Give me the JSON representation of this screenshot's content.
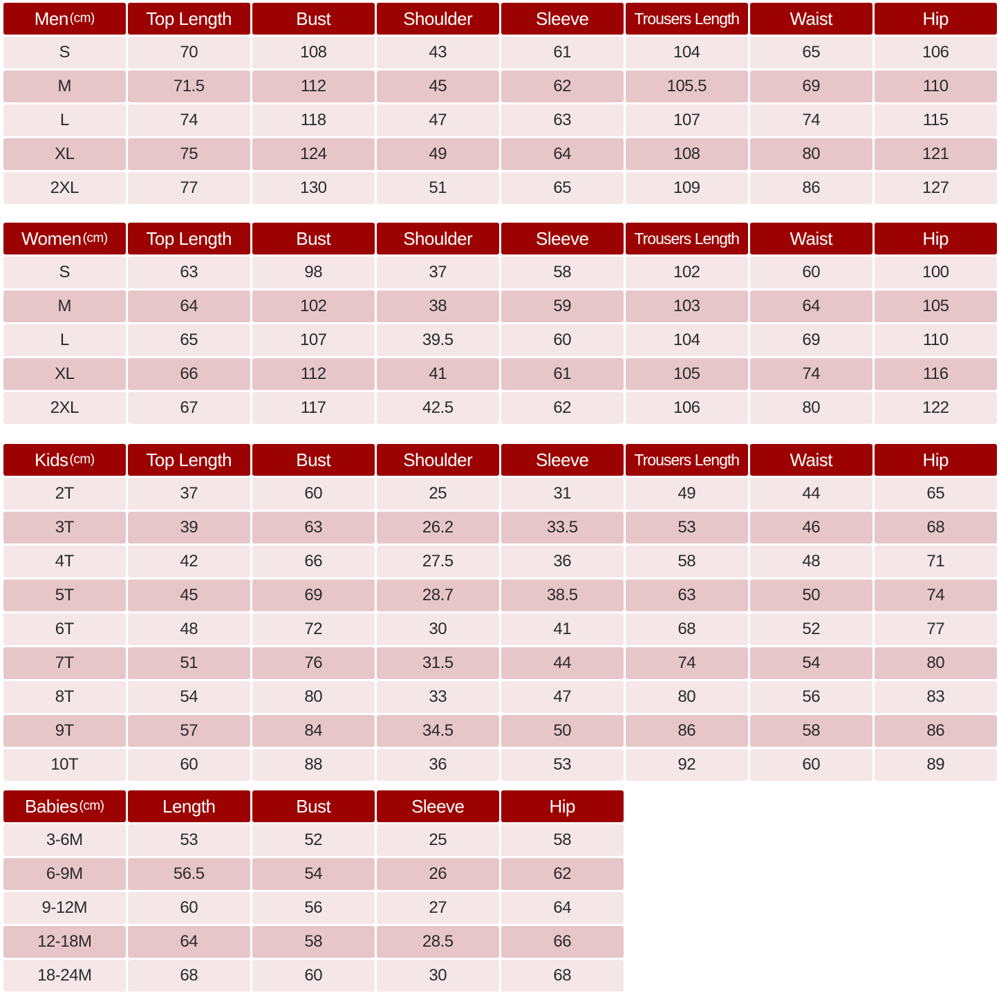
{
  "colors": {
    "header": "#9c0202",
    "row_light": "#f5e6e8",
    "row_dark": "#e7c6ca",
    "header_text": "#ffffff"
  },
  "tables": [
    {
      "title": "Men",
      "unit": "(cm)",
      "columns": [
        "Top Length",
        "Bust",
        "Shoulder",
        "Sleeve",
        "Trousers Length",
        "Waist",
        "Hip"
      ],
      "rows": [
        [
          "S",
          "70",
          "108",
          "43",
          "61",
          "104",
          "65",
          "106"
        ],
        [
          "M",
          "71.5",
          "112",
          "45",
          "62",
          "105.5",
          "69",
          "110"
        ],
        [
          "L",
          "74",
          "118",
          "47",
          "63",
          "107",
          "74",
          "115"
        ],
        [
          "XL",
          "75",
          "124",
          "49",
          "64",
          "108",
          "80",
          "121"
        ],
        [
          "2XL",
          "77",
          "130",
          "51",
          "65",
          "109",
          "86",
          "127"
        ]
      ]
    },
    {
      "title": "Women",
      "unit": "(cm)",
      "columns": [
        "Top Length",
        "Bust",
        "Shoulder",
        "Sleeve",
        "Trousers Length",
        "Waist",
        "Hip"
      ],
      "rows": [
        [
          "S",
          "63",
          "98",
          "37",
          "58",
          "102",
          "60",
          "100"
        ],
        [
          "M",
          "64",
          "102",
          "38",
          "59",
          "103",
          "64",
          "105"
        ],
        [
          "L",
          "65",
          "107",
          "39.5",
          "60",
          "104",
          "69",
          "110"
        ],
        [
          "XL",
          "66",
          "112",
          "41",
          "61",
          "105",
          "74",
          "116"
        ],
        [
          "2XL",
          "67",
          "117",
          "42.5",
          "62",
          "106",
          "80",
          "122"
        ]
      ]
    },
    {
      "title": "Kids",
      "unit": "(cm)",
      "columns": [
        "Top Length",
        "Bust",
        "Shoulder",
        "Sleeve",
        "Trousers Length",
        "Waist",
        "Hip"
      ],
      "rows": [
        [
          "2T",
          "37",
          "60",
          "25",
          "31",
          "49",
          "44",
          "65"
        ],
        [
          "3T",
          "39",
          "63",
          "26.2",
          "33.5",
          "53",
          "46",
          "68"
        ],
        [
          "4T",
          "42",
          "66",
          "27.5",
          "36",
          "58",
          "48",
          "71"
        ],
        [
          "5T",
          "45",
          "69",
          "28.7",
          "38.5",
          "63",
          "50",
          "74"
        ],
        [
          "6T",
          "48",
          "72",
          "30",
          "41",
          "68",
          "52",
          "77"
        ],
        [
          "7T",
          "51",
          "76",
          "31.5",
          "44",
          "74",
          "54",
          "80"
        ],
        [
          "8T",
          "54",
          "80",
          "33",
          "47",
          "80",
          "56",
          "83"
        ],
        [
          "9T",
          "57",
          "84",
          "34.5",
          "50",
          "86",
          "58",
          "86"
        ],
        [
          "10T",
          "60",
          "88",
          "36",
          "53",
          "92",
          "60",
          "89"
        ]
      ]
    },
    {
      "title": "Babies",
      "unit": "(cm)",
      "columns": [
        "Length",
        "Bust",
        "Sleeve",
        "Hip"
      ],
      "rows": [
        [
          "3-6M",
          "53",
          "52",
          "25",
          "58"
        ],
        [
          "6-9M",
          "56.5",
          "54",
          "26",
          "62"
        ],
        [
          "9-12M",
          "60",
          "56",
          "27",
          "64"
        ],
        [
          "12-18M",
          "64",
          "58",
          "28.5",
          "66"
        ],
        [
          "18-24M",
          "68",
          "60",
          "30",
          "68"
        ]
      ]
    }
  ]
}
